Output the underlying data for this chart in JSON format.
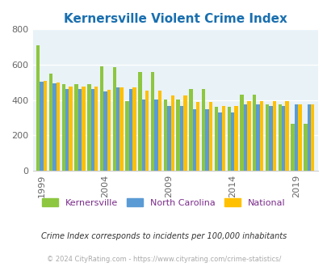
{
  "title": "Kernersville Violent Crime Index",
  "title_color": "#1a6faf",
  "kernersville": [
    710,
    550,
    490,
    490,
    490,
    590,
    585,
    395,
    560,
    560,
    405,
    405,
    465,
    465,
    360,
    360,
    430,
    430,
    375,
    375,
    265,
    265
  ],
  "north_carolina": [
    505,
    495,
    465,
    465,
    465,
    450,
    470,
    465,
    405,
    405,
    365,
    365,
    350,
    350,
    330,
    330,
    375,
    375,
    365,
    365,
    375,
    375
  ],
  "national": [
    510,
    500,
    475,
    475,
    475,
    460,
    470,
    470,
    455,
    455,
    425,
    425,
    390,
    390,
    365,
    365,
    395,
    395,
    395,
    395,
    375,
    375
  ],
  "kernersville_color": "#8dc63f",
  "nc_color": "#5b9bd5",
  "national_color": "#ffc000",
  "bg_color": "#e8f2f7",
  "ylim": [
    0,
    800
  ],
  "yticks": [
    0,
    200,
    400,
    600,
    800
  ],
  "xtick_labels": [
    "1999",
    "2004",
    "2009",
    "2014",
    "2019"
  ],
  "xtick_positions": [
    0,
    5,
    10,
    15,
    20
  ],
  "legend_labels": [
    "Kernersville",
    "North Carolina",
    "National"
  ],
  "legend_label_color": "#7b2d8b",
  "footnote1": "Crime Index corresponds to incidents per 100,000 inhabitants",
  "footnote2": "© 2024 CityRating.com - https://www.cityrating.com/crime-statistics/",
  "footnote2_color": "#aaaaaa",
  "footnote1_color": "#333333"
}
